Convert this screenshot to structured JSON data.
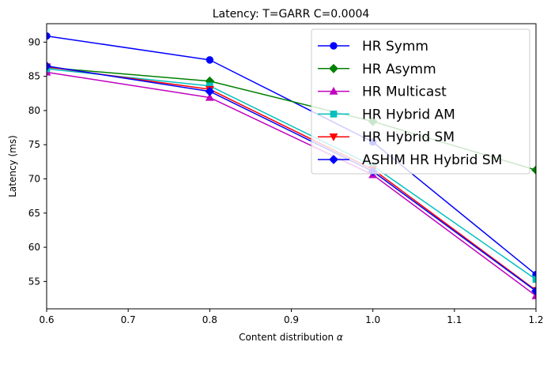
{
  "chart_data": {
    "type": "line",
    "title": "Latency: T=GARR C=0.0004",
    "xlabel": "Content distribution",
    "xlabel_symbol": "α",
    "ylabel": "Latency (ms)",
    "xlim": [
      0.6,
      1.2
    ],
    "ylim": [
      51,
      92.7
    ],
    "xticks": [
      "0.6",
      "0.7",
      "0.8",
      "0.9",
      "1.0",
      "1.1",
      "1.2"
    ],
    "yticks": [
      "55",
      "60",
      "65",
      "70",
      "75",
      "80",
      "85",
      "90"
    ],
    "grid": false,
    "legend_position": "top-right",
    "x": [
      0.6,
      0.8,
      1.0,
      1.2
    ],
    "series": [
      {
        "name": "HR Symm",
        "color": "#0000ff",
        "marker": "circle",
        "values": [
          90.9,
          87.4,
          75.4,
          56.0
        ]
      },
      {
        "name": "HR Asymm",
        "color": "#008000",
        "marker": "diamond",
        "values": [
          86.3,
          84.3,
          78.4,
          71.3
        ]
      },
      {
        "name": "HR Multicast",
        "color": "#bf00bf",
        "marker": "triangle-up",
        "values": [
          85.6,
          81.9,
          70.6,
          52.9
        ]
      },
      {
        "name": "HR Hybrid AM",
        "color": "#00bfbf",
        "marker": "square",
        "values": [
          86.1,
          83.6,
          71.9,
          55.3
        ]
      },
      {
        "name": "HR Hybrid SM",
        "color": "#ff0000",
        "marker": "triangle-down",
        "values": [
          86.4,
          83.1,
          71.4,
          53.7
        ]
      },
      {
        "name": "ASHIM HR Hybrid SM",
        "color": "#0000ff",
        "marker": "diamond",
        "values": [
          86.5,
          82.8,
          71.1,
          53.6
        ]
      }
    ]
  }
}
